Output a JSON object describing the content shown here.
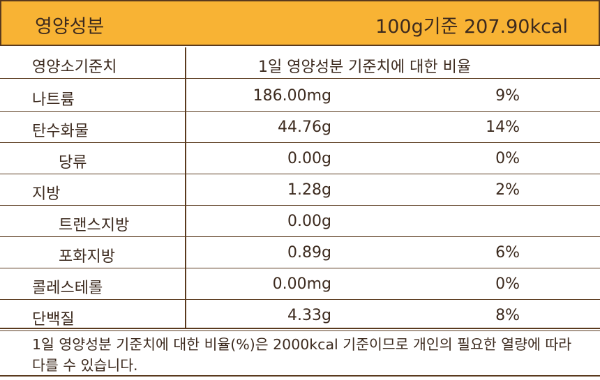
{
  "header": {
    "title": "영양성분",
    "basis": "100g기준 207.90kcal"
  },
  "table": {
    "columns": [
      "영양소기준치",
      "1일 영양성분 기준치에 대한 비율"
    ],
    "rows": [
      {
        "name": "나트륨",
        "amount": "186.00mg",
        "percent": "9%"
      },
      {
        "name": "탄수화물",
        "amount": "44.76g",
        "percent": "14%",
        "children": [
          {
            "name": "당류",
            "amount": "0.00g",
            "percent": "0%"
          }
        ]
      },
      {
        "name": "지방",
        "amount": "1.28g",
        "percent": "2%",
        "children": [
          {
            "name": "트랜스지방",
            "amount": "0.00g"
          },
          {
            "name": "포화지방",
            "amount": "0.89g",
            "percent": "6%"
          }
        ]
      },
      {
        "name": "콜레스테롤",
        "amount": "0.00mg",
        "percent": "0%"
      },
      {
        "name": "단백질",
        "amount": "4.33g",
        "percent": "8%"
      }
    ]
  },
  "footnote": "1일 영양성분 기준치에 대한 비율(%)은 2000kcal 기준이므로 개인의 필요한 열량에 따라 다를 수 있습니다."
}
